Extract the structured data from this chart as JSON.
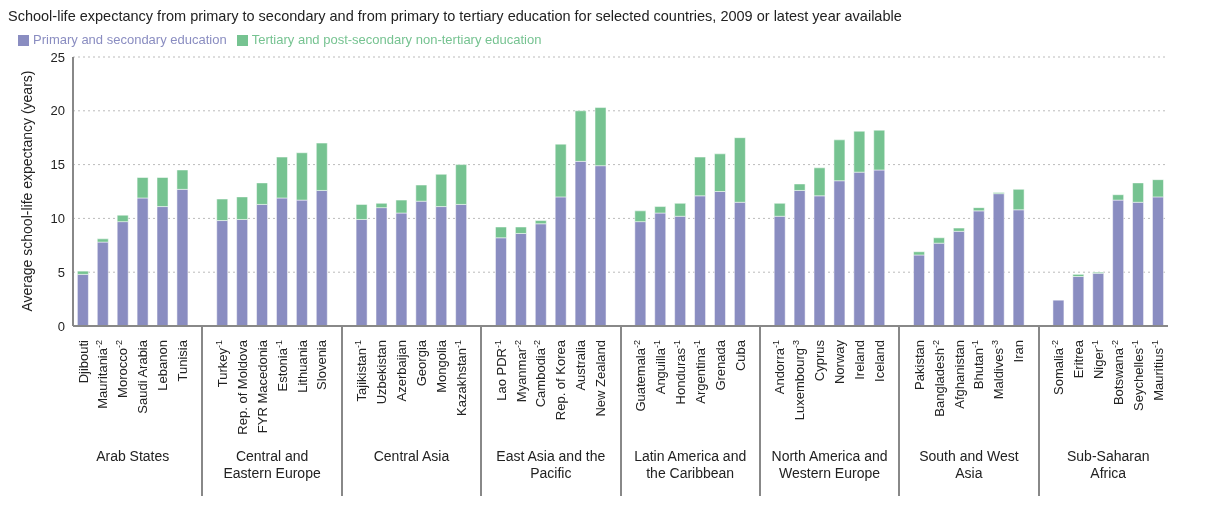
{
  "chart_data": {
    "type": "bar",
    "stacked": true,
    "title": "School-life expectancy from primary to secondary and from primary to tertiary education for selected countries, 2009 or latest year available",
    "ylabel": "Average school-life expectancy (years)",
    "categories": [
      "Djibouti",
      "Mauritania$^{-2}$",
      "Morocco$^{-2}$",
      "Saudi Arabia",
      "Lebanon",
      "Tunisia",
      null,
      "Turkey$^{-1}$",
      "Rep. of Moldova",
      "FYR Macedonia",
      "Estonia$^{-1}$",
      "Lithuania",
      "Slovenia",
      null,
      "Tajikistan$^{-1}$",
      "Uzbekistan",
      "Azerbaijan",
      "Georgia",
      "Mongolia",
      "Kazakhstan$^{-1}$",
      null,
      "Lao PDR$^{-1}$",
      "Myanmar$^{-2}$",
      "Cambodia$^{-2}$",
      "Rep. of Korea",
      "Australia",
      "New Zealand",
      null,
      "Guatemala$^{-2}$",
      "Anguilla$^{-1}$",
      "Honduras$^{-1}$",
      "Argentina$^{-1}$",
      "Grenada",
      "Cuba",
      null,
      "Andorra$^{-1}$",
      "Luxembourg$^{-3}$",
      "Cyprus",
      "Norway",
      "Ireland",
      "Iceland",
      null,
      "Pakistan",
      "Bangladesh$^{-2}$",
      "Afghanistan",
      "Bhutan$^{-1}$",
      "Maldives$^{-3}$",
      "Iran",
      null,
      "Somalia$^{-2}$",
      "Eritrea",
      "Niger$^{-1}$",
      "Botswana$^{-2}$",
      "Seychelles$^{-1}$",
      "Mauritius$^{-1}$"
    ],
    "series": [
      {
        "name": "Primary and secondary education",
        "color": "#8a8dc1",
        "values": [
          4.8,
          7.8,
          9.7,
          11.9,
          11.1,
          12.7,
          null,
          9.8,
          9.9,
          11.3,
          11.9,
          11.7,
          12.6,
          null,
          9.9,
          11.0,
          10.5,
          11.6,
          11.1,
          11.3,
          null,
          8.2,
          8.6,
          9.5,
          12.0,
          15.3,
          14.9,
          null,
          9.7,
          10.5,
          10.2,
          12.1,
          12.5,
          11.5,
          null,
          10.2,
          12.6,
          12.1,
          13.5,
          14.3,
          14.5,
          null,
          6.6,
          7.7,
          8.8,
          10.7,
          12.3,
          10.8,
          null,
          2.4,
          4.6,
          4.9,
          11.7,
          11.5,
          12.0
        ]
      },
      {
        "name": "Tertiary and post-secondary non-tertiary education",
        "color": "#76c391",
        "values": [
          0.3,
          0.3,
          0.6,
          1.9,
          2.7,
          1.8,
          null,
          2.0,
          2.1,
          2.0,
          3.8,
          4.4,
          4.4,
          null,
          1.4,
          0.4,
          1.2,
          1.5,
          3.0,
          3.7,
          null,
          1.0,
          0.6,
          0.3,
          4.9,
          4.7,
          5.4,
          null,
          1.0,
          0.6,
          1.2,
          3.6,
          3.5,
          6.0,
          null,
          1.2,
          0.6,
          2.6,
          3.8,
          3.8,
          3.7,
          null,
          0.3,
          0.5,
          0.3,
          0.3,
          0.1,
          1.9,
          null,
          null,
          0.2,
          0.1,
          0.5,
          1.8,
          1.6
        ]
      }
    ],
    "ylim": [
      0,
      25
    ],
    "yticks": [
      0,
      5,
      10,
      15,
      20,
      25
    ],
    "grid": "y",
    "legend": "top left",
    "annotations": [
      "Arab States",
      "Central and Eastern Europe",
      "Central Asia",
      "East Asia and the Pacific",
      "Latin America and the Caribbean",
      "North America and Western Europe",
      "South and West Asia",
      "Sub-Saharan Africa"
    ]
  }
}
